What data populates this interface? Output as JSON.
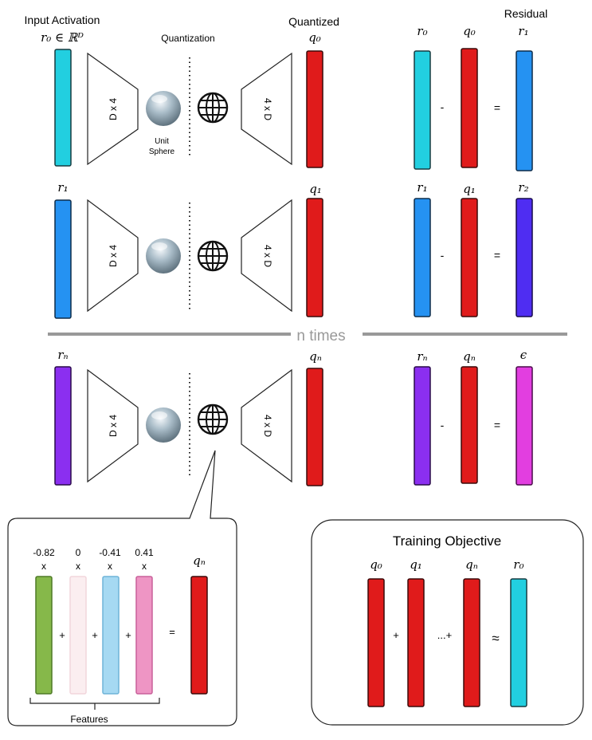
{
  "labels": {
    "input_activation": "Input Activation",
    "quantization": "Quantization",
    "quantized": "Quantized",
    "residual": "Residual",
    "unit": "Unit",
    "sphere": "Sphere",
    "n_times": "n times",
    "features": "Features",
    "training_objective": "Training Objective",
    "enc_label": "D x 4",
    "dec_label": "4 x D",
    "minus": "-",
    "equals": "=",
    "plus": "+",
    "dots_plus": "...+",
    "approx": "≈",
    "times": "x"
  },
  "math": {
    "r0_in_rd": "r₀ ∈ ℝᴰ",
    "r0": "r₀",
    "r1": "r₁",
    "r2": "r₂",
    "rn": "rₙ",
    "q0": "q₀",
    "q1": "q₁",
    "qn": "qₙ",
    "eps": "ϵ"
  },
  "feature_coefficients": [
    "-0.82",
    "0",
    "-0.41",
    "0.41"
  ],
  "colors": {
    "cyan": "#22cfe0",
    "blue": "#2592f2",
    "indigo": "#4f2df2",
    "purple": "#8b2ff0",
    "red": "#e01b1b",
    "magenta": "#e23ee0",
    "green": "#86b84a",
    "pale_pink": "#fbeef0",
    "light_blue": "#a6d9f2",
    "pink": "#ee95c4",
    "divider": "#999999"
  }
}
